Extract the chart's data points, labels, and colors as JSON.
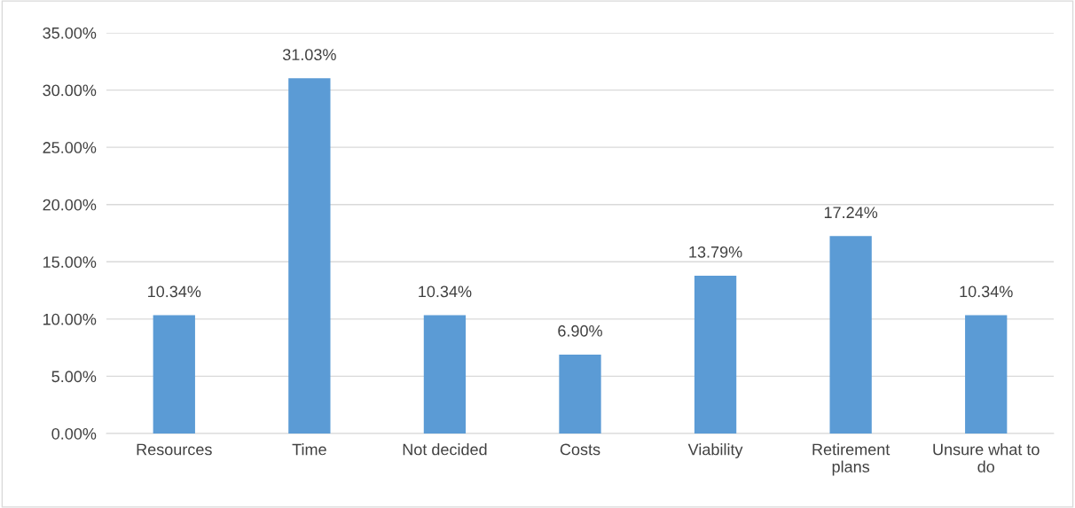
{
  "chart_data": {
    "type": "bar",
    "categories": [
      "Resources",
      "Time",
      "Not decided",
      "Costs",
      "Viability",
      "Retirement plans",
      "Unsure what to do"
    ],
    "values": [
      10.34,
      31.03,
      10.34,
      6.9,
      13.79,
      17.24,
      10.34
    ],
    "value_labels": [
      "10.34%",
      "31.03%",
      "10.34%",
      "6.90%",
      "13.79%",
      "17.24%",
      "10.34%"
    ],
    "color": "#5b9bd5",
    "ylim": [
      0,
      35
    ],
    "yticks": [
      {
        "value": 0,
        "label": "0.00%"
      },
      {
        "value": 5,
        "label": "5.00%"
      },
      {
        "value": 10,
        "label": "10.00%"
      },
      {
        "value": 15,
        "label": "15.00%"
      },
      {
        "value": 20,
        "label": "20.00%"
      },
      {
        "value": 25,
        "label": "25.00%"
      },
      {
        "value": 30,
        "label": "30.00%"
      },
      {
        "value": 35,
        "label": "35.00%"
      }
    ],
    "grid": "y",
    "legend": false
  }
}
